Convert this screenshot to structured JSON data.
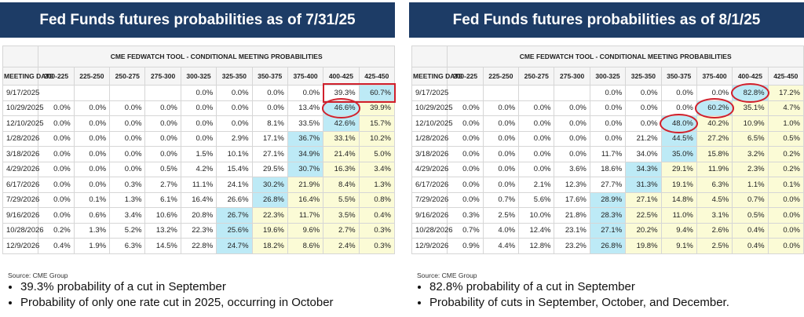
{
  "panels": [
    {
      "title": "Fed Funds futures probabilities as of 7/31/25",
      "table": {
        "super_header": "CME FEDWATCH TOOL - CONDITIONAL MEETING PROBABILITIES",
        "headers": [
          "MEETING DATE",
          "200-225",
          "225-250",
          "250-275",
          "275-300",
          "300-325",
          "325-350",
          "350-375",
          "375-400",
          "400-425",
          "425-450"
        ],
        "rows": [
          [
            "9/17/2025",
            null,
            null,
            null,
            null,
            "0.0%",
            "0.0%",
            "0.0%",
            "0.0%",
            "39.3%",
            "60.7%"
          ],
          [
            "10/29/2025",
            "0.0%",
            "0.0%",
            "0.0%",
            "0.0%",
            "0.0%",
            "0.0%",
            "0.0%",
            "13.4%",
            "46.6%",
            "39.9%"
          ],
          [
            "12/10/2025",
            "0.0%",
            "0.0%",
            "0.0%",
            "0.0%",
            "0.0%",
            "0.0%",
            "8.1%",
            "33.5%",
            "42.6%",
            "15.7%"
          ],
          [
            "1/28/2026",
            "0.0%",
            "0.0%",
            "0.0%",
            "0.0%",
            "0.0%",
            "2.9%",
            "17.1%",
            "36.7%",
            "33.1%",
            "10.2%"
          ],
          [
            "3/18/2026",
            "0.0%",
            "0.0%",
            "0.0%",
            "0.0%",
            "1.5%",
            "10.1%",
            "27.1%",
            "34.9%",
            "21.4%",
            "5.0%"
          ],
          [
            "4/29/2026",
            "0.0%",
            "0.0%",
            "0.0%",
            "0.5%",
            "4.2%",
            "15.4%",
            "29.5%",
            "30.7%",
            "16.3%",
            "3.4%"
          ],
          [
            "6/17/2026",
            "0.0%",
            "0.0%",
            "0.3%",
            "2.7%",
            "11.1%",
            "24.1%",
            "30.2%",
            "21.9%",
            "8.4%",
            "1.3%"
          ],
          [
            "7/29/2026",
            "0.0%",
            "0.1%",
            "1.3%",
            "6.1%",
            "16.4%",
            "26.6%",
            "26.8%",
            "16.4%",
            "5.5%",
            "0.8%"
          ],
          [
            "9/16/2026",
            "0.0%",
            "0.6%",
            "3.4%",
            "10.6%",
            "20.8%",
            "26.7%",
            "22.3%",
            "11.7%",
            "3.5%",
            "0.4%"
          ],
          [
            "10/28/2026",
            "0.2%",
            "1.3%",
            "5.2%",
            "13.2%",
            "22.3%",
            "25.6%",
            "19.6%",
            "9.6%",
            "2.7%",
            "0.3%"
          ],
          [
            "12/9/2026",
            "0.4%",
            "1.9%",
            "6.3%",
            "14.5%",
            "22.8%",
            "24.7%",
            "18.2%",
            "8.6%",
            "2.4%",
            "0.3%"
          ]
        ]
      },
      "source": "Source: CME Group",
      "bullets": [
        "39.3% probability of a cut in September",
        "Probability of only one rate cut in 2025, occurring in October"
      ]
    },
    {
      "title": "Fed Funds futures probabilities as of 8/1/25",
      "table": {
        "super_header": "CME FEDWATCH TOOL - CONDITIONAL MEETING PROBABILITIES",
        "headers": [
          "MEETING DATE",
          "200-225",
          "225-250",
          "250-275",
          "275-300",
          "300-325",
          "325-350",
          "350-375",
          "375-400",
          "400-425",
          "425-450"
        ],
        "rows": [
          [
            "9/17/2025",
            null,
            null,
            null,
            null,
            "0.0%",
            "0.0%",
            "0.0%",
            "0.0%",
            "82.8%",
            "17.2%"
          ],
          [
            "10/29/2025",
            "0.0%",
            "0.0%",
            "0.0%",
            "0.0%",
            "0.0%",
            "0.0%",
            "0.0%",
            "60.2%",
            "35.1%",
            "4.7%"
          ],
          [
            "12/10/2025",
            "0.0%",
            "0.0%",
            "0.0%",
            "0.0%",
            "0.0%",
            "0.0%",
            "48.0%",
            "40.2%",
            "10.9%",
            "1.0%"
          ],
          [
            "1/28/2026",
            "0.0%",
            "0.0%",
            "0.0%",
            "0.0%",
            "0.0%",
            "21.2%",
            "44.5%",
            "27.2%",
            "6.5%",
            "0.5%"
          ],
          [
            "3/18/2026",
            "0.0%",
            "0.0%",
            "0.0%",
            "0.0%",
            "11.7%",
            "34.0%",
            "35.0%",
            "15.8%",
            "3.2%",
            "0.2%"
          ],
          [
            "4/29/2026",
            "0.0%",
            "0.0%",
            "0.0%",
            "3.6%",
            "18.6%",
            "34.3%",
            "29.1%",
            "11.9%",
            "2.3%",
            "0.2%"
          ],
          [
            "6/17/2026",
            "0.0%",
            "0.0%",
            "2.1%",
            "12.3%",
            "27.7%",
            "31.3%",
            "19.1%",
            "6.3%",
            "1.1%",
            "0.1%"
          ],
          [
            "7/29/2026",
            "0.0%",
            "0.7%",
            "5.6%",
            "17.6%",
            "28.9%",
            "27.1%",
            "14.8%",
            "4.5%",
            "0.7%",
            "0.0%"
          ],
          [
            "9/16/2026",
            "0.3%",
            "2.5%",
            "10.0%",
            "21.8%",
            "28.3%",
            "22.5%",
            "11.0%",
            "3.1%",
            "0.5%",
            "0.0%"
          ],
          [
            "10/28/2026",
            "0.7%",
            "4.0%",
            "12.4%",
            "23.1%",
            "27.1%",
            "20.2%",
            "9.4%",
            "2.6%",
            "0.4%",
            "0.0%"
          ],
          [
            "12/9/2026",
            "0.9%",
            "4.4%",
            "12.8%",
            "23.2%",
            "26.8%",
            "19.8%",
            "9.1%",
            "2.5%",
            "0.4%",
            "0.0%"
          ]
        ]
      },
      "source": "Source: CME Group",
      "bullets": [
        "82.8% probability of a cut in September",
        "Probability of cuts in September, October, and December."
      ]
    }
  ]
}
